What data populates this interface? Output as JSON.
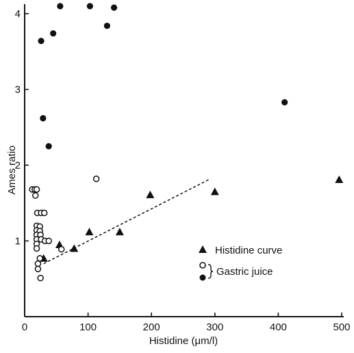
{
  "chart_data": {
    "type": "scatter",
    "xlabel": "Histidine (μm/l)",
    "ylabel": "Ames ratio",
    "xlim": [
      0,
      500
    ],
    "ylim": [
      0,
      4.2
    ],
    "x_ticks": [
      "0",
      "100",
      "200",
      "300",
      "400",
      "500"
    ],
    "y_ticks": [
      "1",
      "2",
      "3",
      "4"
    ],
    "grid": false,
    "legend_position": "lower-right",
    "legend": {
      "histidine_label": "Histidine curve",
      "gastric_label": "Gastric juice"
    },
    "series": [
      {
        "name": "Histidine curve",
        "marker": "filled-triangle",
        "points": [
          {
            "x": 30,
            "y": 0.77
          },
          {
            "x": 55,
            "y": 0.95
          },
          {
            "x": 78,
            "y": 0.9
          },
          {
            "x": 102,
            "y": 1.12
          },
          {
            "x": 150,
            "y": 1.12
          },
          {
            "x": 198,
            "y": 1.61
          },
          {
            "x": 300,
            "y": 1.65
          },
          {
            "x": 496,
            "y": 1.81
          }
        ]
      },
      {
        "name": "Gastric juice",
        "marker": "open-circle",
        "points": [
          {
            "x": 12,
            "y": 1.68
          },
          {
            "x": 16,
            "y": 1.68
          },
          {
            "x": 19,
            "y": 1.68
          },
          {
            "x": 17,
            "y": 1.6
          },
          {
            "x": 20,
            "y": 1.37
          },
          {
            "x": 26,
            "y": 1.37
          },
          {
            "x": 31,
            "y": 1.37
          },
          {
            "x": 19,
            "y": 1.2
          },
          {
            "x": 24,
            "y": 1.19
          },
          {
            "x": 19,
            "y": 1.14
          },
          {
            "x": 24,
            "y": 1.13
          },
          {
            "x": 19,
            "y": 1.08
          },
          {
            "x": 25,
            "y": 1.08
          },
          {
            "x": 19,
            "y": 1.02
          },
          {
            "x": 26,
            "y": 1.02
          },
          {
            "x": 32,
            "y": 1.0
          },
          {
            "x": 38,
            "y": 1.0
          },
          {
            "x": 19,
            "y": 0.96
          },
          {
            "x": 19,
            "y": 0.9
          },
          {
            "x": 24,
            "y": 0.77
          },
          {
            "x": 21,
            "y": 0.7
          },
          {
            "x": 21,
            "y": 0.63
          },
          {
            "x": 25,
            "y": 0.51
          },
          {
            "x": 58,
            "y": 0.89
          },
          {
            "x": 113,
            "y": 1.82
          }
        ]
      },
      {
        "name": "Gastric juice",
        "marker": "filled-circle",
        "points": [
          {
            "x": 26,
            "y": 3.64
          },
          {
            "x": 29,
            "y": 2.62
          },
          {
            "x": 38,
            "y": 2.25
          },
          {
            "x": 45,
            "y": 3.74
          },
          {
            "x": 56,
            "y": 4.1
          },
          {
            "x": 103,
            "y": 4.1
          },
          {
            "x": 130,
            "y": 3.84
          },
          {
            "x": 141,
            "y": 4.08
          },
          {
            "x": 410,
            "y": 2.83
          }
        ]
      }
    ],
    "trend_line": {
      "style": "dashed",
      "points": [
        {
          "x": 30,
          "y": 0.7
        },
        {
          "x": 293,
          "y": 1.82
        }
      ]
    }
  }
}
